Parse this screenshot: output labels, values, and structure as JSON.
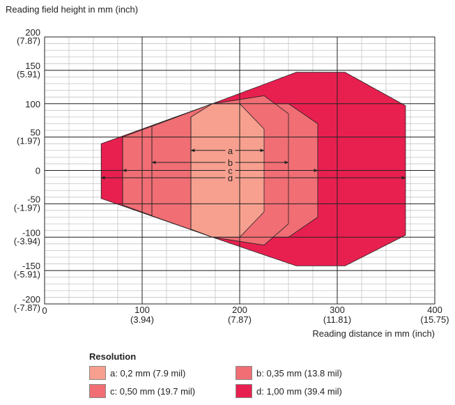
{
  "chart_data": {
    "type": "area",
    "y_axis_title": "Reading field height in mm (inch)",
    "x_axis_title": "Reading distance in mm (inch)",
    "xlim": [
      0,
      400
    ],
    "ylim": [
      -200,
      200
    ],
    "x_ticks": [
      {
        "value": 0,
        "label": "0",
        "sub": ""
      },
      {
        "value": 100,
        "label": "100",
        "sub": "(3.94)"
      },
      {
        "value": 200,
        "label": "200",
        "sub": "(7.87)"
      },
      {
        "value": 300,
        "label": "300",
        "sub": "(11.81)"
      },
      {
        "value": 400,
        "label": "400",
        "sub": "(15.75)"
      }
    ],
    "y_ticks": [
      {
        "value": 200,
        "label": "200",
        "sub": "(7.87)"
      },
      {
        "value": 150,
        "label": "150",
        "sub": "(5.91)"
      },
      {
        "value": 100,
        "label": "100",
        "sub": ""
      },
      {
        "value": 50,
        "label": "50",
        "sub": "(1.97)"
      },
      {
        "value": 0,
        "label": "0",
        "sub": ""
      },
      {
        "value": -50,
        "label": "-50",
        "sub": "(-1.97)"
      },
      {
        "value": -100,
        "label": "-100",
        "sub": "(-3.94)"
      },
      {
        "value": -150,
        "label": "-150",
        "sub": "(-5.91)"
      },
      {
        "value": -200,
        "label": "-200",
        "sub": "(-7.87)"
      }
    ],
    "grid": true,
    "series": [
      {
        "name": "d",
        "color": "#e8204f",
        "polygon": [
          [
            58,
            40
          ],
          [
            172,
            100
          ],
          [
            258,
            147
          ],
          [
            308,
            147
          ],
          [
            370,
            97
          ],
          [
            370,
            -97
          ],
          [
            308,
            -143
          ],
          [
            258,
            -143
          ],
          [
            172,
            -100
          ],
          [
            58,
            -42
          ]
        ],
        "range": [
          58,
          370
        ],
        "arrow_y": -11
      },
      {
        "name": "c",
        "color": "#f06e74",
        "polygon": [
          [
            80,
            50
          ],
          [
            172,
            100
          ],
          [
            250,
            100
          ],
          [
            280,
            70
          ],
          [
            280,
            -70
          ],
          [
            250,
            -100
          ],
          [
            172,
            -100
          ],
          [
            80,
            -52
          ]
        ],
        "range": [
          80,
          280
        ],
        "arrow_y": 0
      },
      {
        "name": "b",
        "color": "#f06e74",
        "polygon": [
          [
            110,
            66
          ],
          [
            172,
            100
          ],
          [
            225,
            112
          ],
          [
            250,
            85
          ],
          [
            250,
            -80
          ],
          [
            225,
            -112
          ],
          [
            172,
            -100
          ],
          [
            110,
            -68
          ]
        ],
        "range": [
          110,
          250
        ],
        "arrow_y": 12
      },
      {
        "name": "a",
        "color": "#f7a08f",
        "polygon": [
          [
            150,
            80
          ],
          [
            172,
            100
          ],
          [
            200,
            100
          ],
          [
            225,
            62
          ],
          [
            225,
            -62
          ],
          [
            200,
            -100
          ],
          [
            172,
            -100
          ],
          [
            150,
            -88
          ]
        ],
        "range": [
          150,
          225
        ],
        "arrow_y": 30
      }
    ],
    "dividers": [
      80,
      110,
      150
    ]
  },
  "legend": {
    "title": "Resolution",
    "items": [
      {
        "label": "a: 0,2 mm (7.9 mil)",
        "color": "#f7a08f"
      },
      {
        "label": "b: 0,35 mm (13.8 mil)",
        "color": "#f06e74"
      },
      {
        "label": "c: 0,50 mm (19.7 mil)",
        "color": "#f06e74"
      },
      {
        "label": "d: 1,00 mm (39.4 mil)",
        "color": "#e8204f"
      }
    ]
  }
}
